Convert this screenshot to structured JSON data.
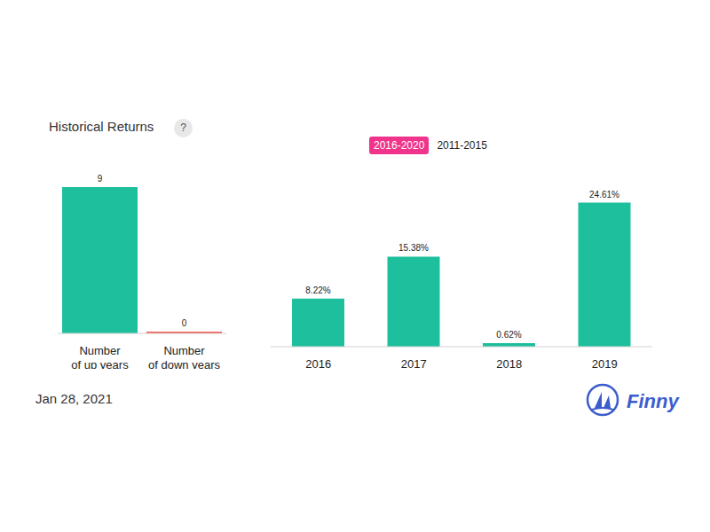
{
  "header": {
    "title": "Historical Returns",
    "help": "?",
    "tabs": [
      {
        "label": "2016-2020",
        "active": true
      },
      {
        "label": "2011-2015",
        "active": false
      }
    ]
  },
  "footer": {
    "date": "Jan 28, 2021",
    "brand": "Finny"
  },
  "chart_data": [
    {
      "type": "bar",
      "categories": [
        "Number of up years",
        "Number of down years"
      ],
      "values": [
        9,
        0
      ],
      "colors": [
        "#1dbf9d",
        "#f25c54"
      ],
      "ylim": [
        0,
        9
      ],
      "data_labels": true,
      "tick_labels": "x",
      "grid": false
    },
    {
      "type": "bar",
      "categories": [
        "2016",
        "2017",
        "2018",
        "2019"
      ],
      "values": [
        8.22,
        15.38,
        0.62,
        24.61
      ],
      "value_labels": [
        "8.22%",
        "15.38%",
        "0.62%",
        "24.61%"
      ],
      "color": "#1dbf9d",
      "ylim": [
        0,
        25
      ],
      "data_labels": true,
      "tick_labels": "x",
      "grid": false
    }
  ]
}
